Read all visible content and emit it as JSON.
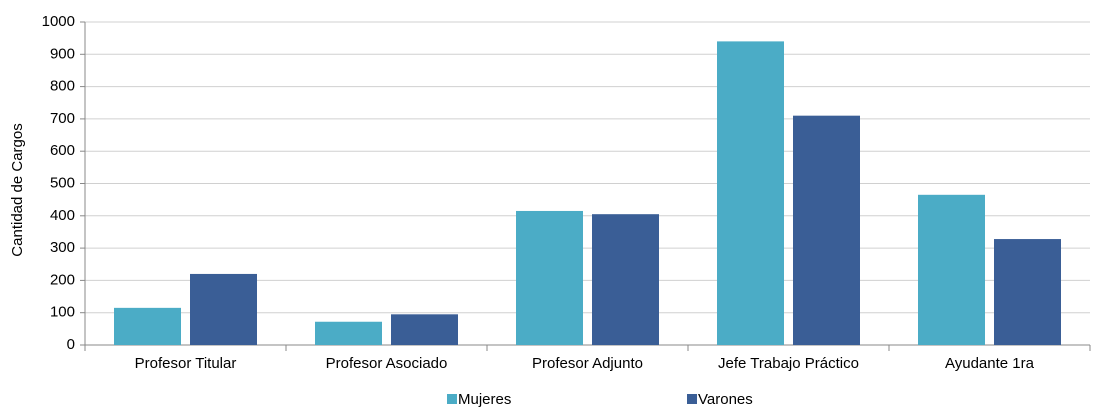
{
  "chart_data": {
    "type": "bar",
    "y_label": "Cantidad de Cargos",
    "categories": [
      "Profesor Titular",
      "Profesor Asociado",
      "Profesor Adjunto",
      "Jefe Trabajo Práctico",
      "Ayudante 1ra"
    ],
    "series": [
      {
        "name": "Mujeres",
        "color": "#4bacc6",
        "values": [
          115,
          72,
          415,
          940,
          465
        ]
      },
      {
        "name": "Varones",
        "color": "#3a5e96",
        "values": [
          220,
          95,
          405,
          710,
          328
        ]
      }
    ],
    "ylim": [
      0,
      1000
    ],
    "yticks": [
      0,
      100,
      200,
      300,
      400,
      500,
      600,
      700,
      800,
      900,
      1000
    ],
    "grid": true,
    "legend": "bottom"
  }
}
